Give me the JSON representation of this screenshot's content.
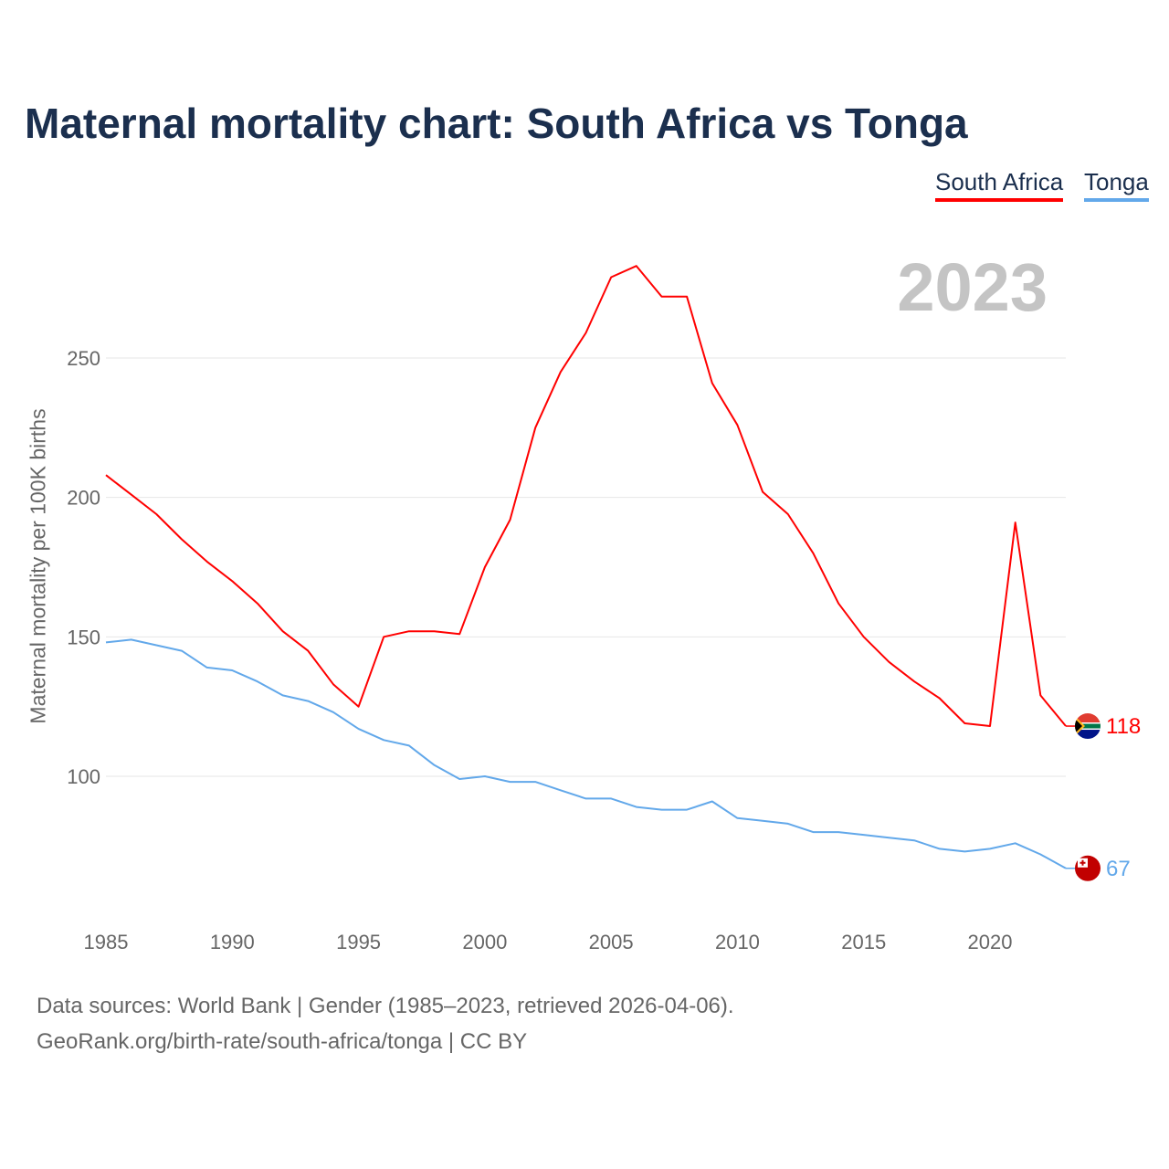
{
  "chart_data": {
    "type": "line",
    "title": "Maternal mortality chart: South Africa vs Tonga",
    "ylabel": "Maternal mortality per 100K births",
    "xlabel": "",
    "year_label": "2023",
    "x": [
      1985,
      1986,
      1987,
      1988,
      1989,
      1990,
      1991,
      1992,
      1993,
      1994,
      1995,
      1996,
      1997,
      1998,
      1999,
      2000,
      2001,
      2002,
      2003,
      2004,
      2005,
      2006,
      2007,
      2008,
      2009,
      2010,
      2011,
      2012,
      2013,
      2014,
      2015,
      2016,
      2017,
      2018,
      2019,
      2020,
      2021,
      2022,
      2023
    ],
    "xticks": [
      "1985",
      "1990",
      "1995",
      "2000",
      "2005",
      "2010",
      "2015",
      "2020"
    ],
    "yticks": [
      "100",
      "150",
      "200",
      "250"
    ],
    "xlim": [
      1985,
      2023
    ],
    "ylim": [
      50,
      300
    ],
    "grid": true,
    "legend_position": "top-right",
    "series": [
      {
        "name": "South Africa",
        "color": "#ff0000",
        "end_label": "118",
        "values": [
          208,
          201,
          194,
          185,
          177,
          170,
          162,
          152,
          145,
          133,
          125,
          150,
          152,
          152,
          151,
          175,
          192,
          225,
          245,
          259,
          279,
          283,
          272,
          272,
          241,
          226,
          202,
          194,
          180,
          162,
          150,
          141,
          134,
          128,
          119,
          118,
          191,
          129,
          118
        ]
      },
      {
        "name": "Tonga",
        "color": "#62a8ea",
        "end_label": "67",
        "values": [
          148,
          149,
          147,
          145,
          139,
          138,
          134,
          129,
          127,
          123,
          117,
          113,
          111,
          104,
          99,
          100,
          98,
          98,
          95,
          92,
          92,
          89,
          88,
          88,
          91,
          85,
          84,
          83,
          80,
          80,
          79,
          78,
          77,
          74,
          73,
          74,
          76,
          72,
          67
        ]
      }
    ]
  },
  "footer": {
    "line1": "Data sources: World Bank | Gender (1985–2023, retrieved 2026-04-06).",
    "line2": "GeoRank.org/birth-rate/south-africa/tonga | CC BY"
  }
}
